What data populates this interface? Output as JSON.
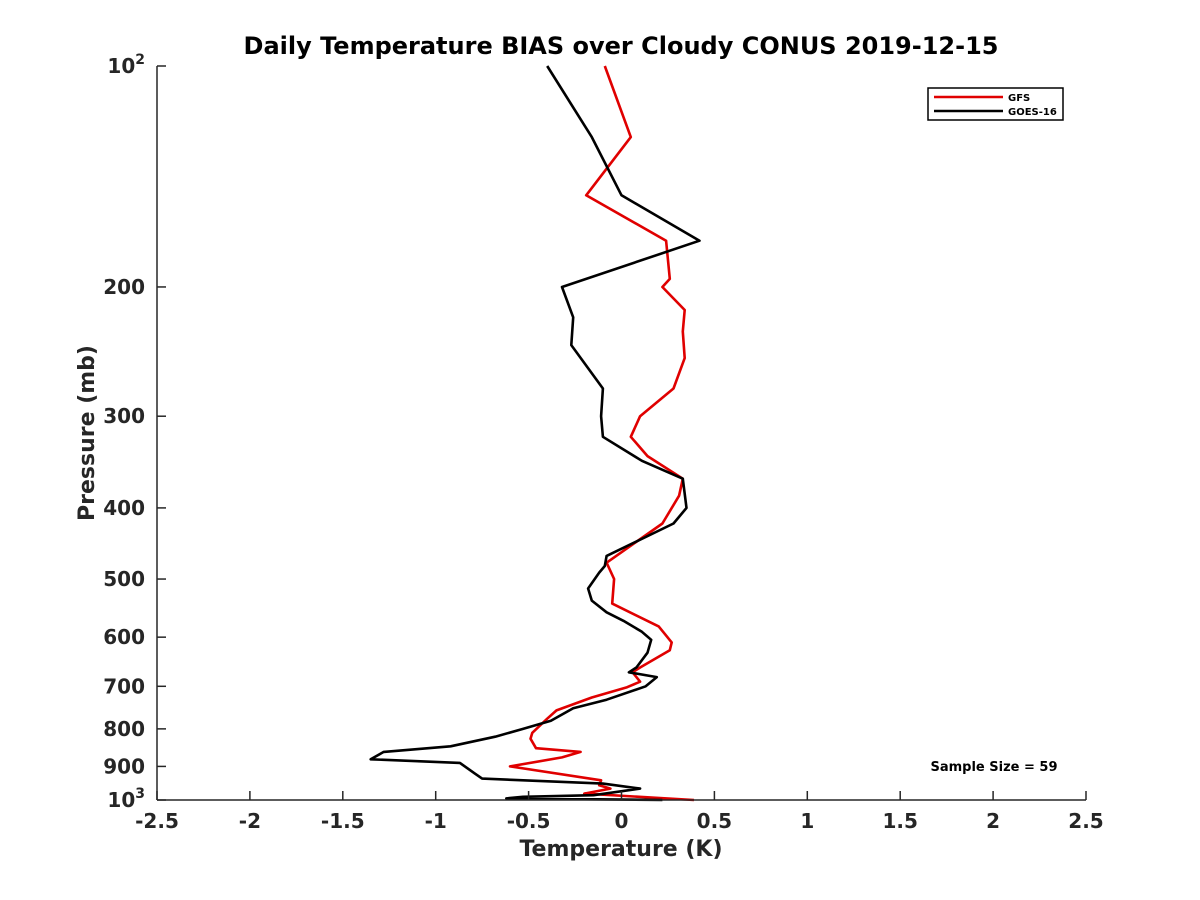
{
  "chart_data": {
    "type": "line",
    "title": "Daily Temperature BIAS over Cloudy CONUS 2019-12-15",
    "xlabel": "Temperature (K)",
    "ylabel": "Pressure (mb)",
    "xlim": [
      -2.5,
      2.5
    ],
    "ylim": [
      1000,
      100
    ],
    "yscale": "log",
    "y_reversed": true,
    "x_ticks": [
      "-2.5",
      "-2",
      "-1.5",
      "-1",
      "-0.5",
      "0",
      "0.5",
      "1",
      "1.5",
      "2",
      "2.5"
    ],
    "x_tick_values": [
      -2.5,
      -2,
      -1.5,
      -1,
      -0.5,
      0,
      0.5,
      1,
      1.5,
      2,
      2.5
    ],
    "y_ticks": [
      {
        "value": 100,
        "base": "10",
        "exp": "2"
      },
      {
        "value": 200,
        "label": "200"
      },
      {
        "value": 300,
        "label": "300"
      },
      {
        "value": 400,
        "label": "400"
      },
      {
        "value": 500,
        "label": "500"
      },
      {
        "value": 600,
        "label": "600"
      },
      {
        "value": 700,
        "label": "700"
      },
      {
        "value": 800,
        "label": "800"
      },
      {
        "value": 900,
        "label": "900"
      },
      {
        "value": 1000,
        "base": "10",
        "exp": "3"
      }
    ],
    "grid": false,
    "legend_position": "top-right",
    "series": [
      {
        "name": "GFS",
        "color": "#e00000",
        "points": [
          [
            -0.09,
            100
          ],
          [
            0.05,
            125
          ],
          [
            -0.19,
            150
          ],
          [
            0.24,
            173
          ],
          [
            0.26,
            195
          ],
          [
            0.22,
            200
          ],
          [
            0.34,
            215
          ],
          [
            0.33,
            230
          ],
          [
            0.34,
            250
          ],
          [
            0.28,
            275
          ],
          [
            0.1,
            300
          ],
          [
            0.05,
            320
          ],
          [
            0.14,
            340
          ],
          [
            0.33,
            365
          ],
          [
            0.31,
            385
          ],
          [
            0.22,
            420
          ],
          [
            -0.08,
            475
          ],
          [
            -0.04,
            500
          ],
          [
            -0.05,
            540
          ],
          [
            0.2,
            580
          ],
          [
            0.27,
            610
          ],
          [
            0.26,
            625
          ],
          [
            0.1,
            660
          ],
          [
            0.06,
            670
          ],
          [
            0.1,
            690
          ],
          [
            0.03,
            702
          ],
          [
            -0.16,
            725
          ],
          [
            -0.35,
            755
          ],
          [
            -0.4,
            775
          ],
          [
            -0.48,
            810
          ],
          [
            -0.49,
            825
          ],
          [
            -0.46,
            850
          ],
          [
            -0.22,
            860
          ],
          [
            -0.32,
            875
          ],
          [
            -0.6,
            900
          ],
          [
            -0.11,
            940
          ],
          [
            -0.12,
            955
          ],
          [
            -0.06,
            965
          ],
          [
            -0.2,
            980
          ],
          [
            0.39,
            1000
          ]
        ]
      },
      {
        "name": "GOES-16",
        "color": "#000000",
        "points": [
          [
            -0.4,
            100
          ],
          [
            -0.16,
            125
          ],
          [
            0.0,
            150
          ],
          [
            0.42,
            173
          ],
          [
            -0.32,
            200
          ],
          [
            -0.26,
            220
          ],
          [
            -0.27,
            240
          ],
          [
            -0.1,
            275
          ],
          [
            -0.11,
            300
          ],
          [
            -0.1,
            320
          ],
          [
            0.11,
            345
          ],
          [
            0.33,
            365
          ],
          [
            0.35,
            400
          ],
          [
            0.28,
            420
          ],
          [
            -0.08,
            465
          ],
          [
            -0.09,
            480
          ],
          [
            -0.12,
            490
          ],
          [
            -0.18,
            515
          ],
          [
            -0.16,
            535
          ],
          [
            -0.08,
            555
          ],
          [
            0.01,
            570
          ],
          [
            0.11,
            590
          ],
          [
            0.16,
            605
          ],
          [
            0.14,
            630
          ],
          [
            0.08,
            660
          ],
          [
            0.04,
            670
          ],
          [
            0.19,
            680
          ],
          [
            0.13,
            700
          ],
          [
            -0.08,
            730
          ],
          [
            -0.26,
            750
          ],
          [
            -0.38,
            780
          ],
          [
            -0.53,
            800
          ],
          [
            -0.68,
            820
          ],
          [
            -0.92,
            845
          ],
          [
            -1.28,
            860
          ],
          [
            -1.35,
            880
          ],
          [
            -0.87,
            890
          ],
          [
            -0.79,
            920
          ],
          [
            -0.75,
            935
          ],
          [
            -0.1,
            950
          ],
          [
            0.1,
            965
          ],
          [
            -0.15,
            985
          ],
          [
            -0.53,
            990
          ],
          [
            -0.62,
            995
          ],
          [
            0.22,
            1000
          ]
        ]
      }
    ],
    "annotations": [
      {
        "text": "Sample Size = 59",
        "position": "bottom-right"
      }
    ]
  }
}
